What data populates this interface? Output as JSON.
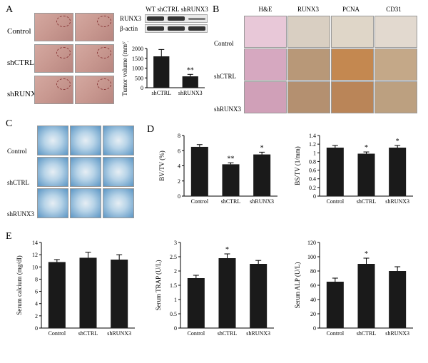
{
  "colors": {
    "bar_fill": "#1a1a1a",
    "axis": "#000000",
    "mouse_skin": "#d4a8a0",
    "ct_blue": "#5a95c4",
    "he_pink": "#e8b8d0",
    "ihc_brown": "#b8956e",
    "ihc_dark": "#8b6a42"
  },
  "panelA": {
    "label": "A",
    "row_labels": [
      "Control",
      "shCTRL",
      "shRUNX3"
    ],
    "wb": {
      "lanes": [
        "WT",
        "shCTRL",
        "shRUNX3"
      ],
      "proteins": [
        "RUNX3",
        "β-actin"
      ]
    },
    "chart": {
      "ylabel": "Tumor volume (mm³)",
      "ymax": 2000,
      "ytick_step": 500,
      "categories": [
        "shCTRL",
        "shRUNX3"
      ],
      "values": [
        1600,
        580
      ],
      "errors": [
        350,
        100
      ],
      "sig": [
        "",
        "**"
      ]
    }
  },
  "panelB": {
    "label": "B",
    "col_labels": [
      "H&E",
      "RUNX3",
      "PCNA",
      "CD31"
    ],
    "row_labels": [
      "Control",
      "shCTRL",
      "shRUNX3"
    ],
    "cell_colors": [
      [
        "#e8c8d8",
        "#d9cfc2",
        "#dfd6c8",
        "#e2d9cf"
      ],
      [
        "#d6a8c0",
        "#b89878",
        "#c48850",
        "#c4a888"
      ],
      [
        "#d0a0b8",
        "#b49070",
        "#ba8558",
        "#bca080"
      ]
    ]
  },
  "panelC": {
    "label": "C",
    "row_labels": [
      "Control",
      "shCTRL",
      "shRUNX3"
    ]
  },
  "panelD": {
    "label": "D",
    "chart1": {
      "ylabel": "BV/TV (%)",
      "ymax": 8,
      "yticks": [
        0,
        2,
        4,
        6,
        8
      ],
      "categories": [
        "Control",
        "shCTRL",
        "shRUNX3"
      ],
      "values": [
        6.5,
        4.2,
        5.5
      ],
      "errors": [
        0.3,
        0.2,
        0.3
      ],
      "sig": [
        "",
        "**",
        "*"
      ]
    },
    "chart2": {
      "ylabel": "BS/TV (1/mm)",
      "ymax": 1.4,
      "yticks": [
        0,
        0.2,
        0.4,
        0.6,
        0.8,
        1.0,
        1.2,
        1.4
      ],
      "categories": [
        "Control",
        "shCTRL",
        "shRUNX3"
      ],
      "values": [
        1.12,
        0.98,
        1.12
      ],
      "errors": [
        0.05,
        0.04,
        0.05
      ],
      "sig": [
        "",
        "*",
        "*"
      ]
    }
  },
  "panelE": {
    "label": "E",
    "chart1": {
      "ylabel": "Serum calcium (mg/dl)",
      "ymax": 14,
      "yticks": [
        0,
        2,
        4,
        6,
        8,
        10,
        12,
        14
      ],
      "categories": [
        "Control",
        "shCTRL",
        "shRUNX3"
      ],
      "values": [
        10.8,
        11.5,
        11.2
      ],
      "errors": [
        0.4,
        0.9,
        0.8
      ],
      "sig": [
        "",
        "",
        ""
      ]
    },
    "chart2": {
      "ylabel": "Serum TRAP (U/L)",
      "ymax": 3.0,
      "yticks": [
        0,
        0.5,
        1.0,
        1.5,
        2.0,
        2.5,
        3.0
      ],
      "categories": [
        "Control",
        "shCTRL",
        "shRUNX3"
      ],
      "values": [
        1.75,
        2.45,
        2.25
      ],
      "errors": [
        0.1,
        0.15,
        0.12
      ],
      "sig": [
        "",
        "*",
        ""
      ]
    },
    "chart3": {
      "ylabel": "Serum ALP (U/L)",
      "ymax": 120,
      "yticks": [
        0,
        20,
        40,
        60,
        80,
        100,
        120
      ],
      "categories": [
        "Control",
        "shCTRL",
        "shRUNX3"
      ],
      "values": [
        65,
        90,
        80
      ],
      "errors": [
        5,
        8,
        6
      ],
      "sig": [
        "",
        "*",
        ""
      ]
    }
  }
}
